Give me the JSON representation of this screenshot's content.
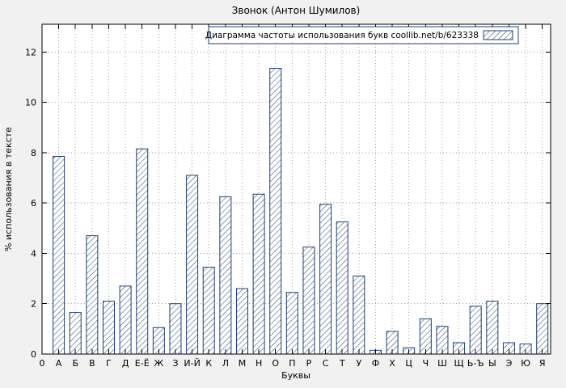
{
  "chart_data": {
    "type": "bar",
    "title": "Звонок (Антон Шумилов)",
    "legend_label": "Диаграмма частоты использования букв coollib.net/b/623338",
    "xlabel": "Буквы",
    "ylabel": "% использования в тексте",
    "x_origin_label": "0",
    "categories": [
      "А",
      "Б",
      "В",
      "Г",
      "Д",
      "Е-Ё",
      "Ж",
      "З",
      "И-Й",
      "К",
      "Л",
      "М",
      "Н",
      "О",
      "П",
      "Р",
      "С",
      "Т",
      "У",
      "Ф",
      "Х",
      "Ц",
      "Ч",
      "Ш",
      "Щ",
      "Ь-Ъ",
      "Ы",
      "Э",
      "Ю",
      "Я"
    ],
    "values": [
      7.85,
      1.65,
      4.7,
      2.1,
      2.7,
      8.15,
      1.05,
      2.0,
      7.1,
      3.45,
      6.25,
      2.6,
      6.35,
      11.35,
      2.45,
      4.25,
      5.95,
      5.25,
      3.1,
      0.15,
      0.9,
      0.25,
      1.4,
      1.1,
      0.45,
      1.9,
      2.1,
      0.45,
      0.4,
      2.0
    ],
    "yticks": [
      0,
      2,
      4,
      6,
      8,
      10,
      12
    ],
    "ylim": [
      0,
      13.1
    ],
    "grid": true,
    "hatch": true,
    "legend_position": "top-right",
    "colors": {
      "bar_hatch": "#1c3e74",
      "grid": "#9f9f9f",
      "background": "#f1f1f1",
      "plot_background": "#ffffff",
      "text": "#000000"
    }
  }
}
